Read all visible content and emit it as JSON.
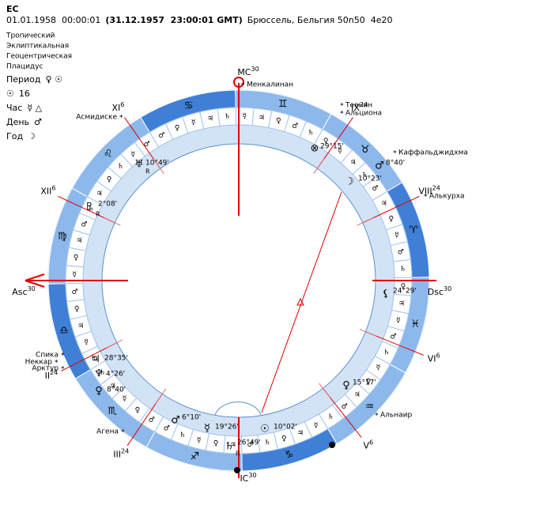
{
  "header": {
    "title": "ЕС",
    "date": "01.01.1958  00:00:01",
    "gmt": "(31.12.1957  23:00:01 GMT)",
    "place": "Брюссель, Бельгия 50n50  4e20"
  },
  "settings": [
    "Тропический",
    "Эклиптикальная",
    "Геоцентрическая",
    "Плацидус"
  ],
  "rulers": [
    {
      "label": "Период",
      "value": "♀ ☉"
    },
    {
      "label": "☉",
      "value": 16
    },
    {
      "label": "Час",
      "value": "☿ △"
    },
    {
      "label": "День",
      "value": "♂"
    },
    {
      "label": "Год",
      "value": "☽"
    }
  ],
  "chart": {
    "angles": [
      {
        "label": "MC",
        "degree": 30
      },
      {
        "label": "Dsc",
        "degree": 30
      },
      {
        "label": "IC",
        "degree": 30
      },
      {
        "label": "Asc",
        "degree": 30
      }
    ],
    "houses": [
      {
        "label": "XII",
        "degree": 6
      },
      {
        "label": "XI",
        "degree": 6
      },
      {
        "label": "IX",
        "degree": 24
      },
      {
        "label": "VIII",
        "degree": 24
      },
      {
        "label": "VI",
        "degree": 6
      },
      {
        "label": "V",
        "degree": 6
      },
      {
        "label": "III",
        "degree": 24
      },
      {
        "label": "II",
        "degree": 24
      }
    ],
    "signs": [
      "♋",
      "♊",
      "♉",
      "♈",
      "♓",
      "♒",
      "♑",
      "♐",
      "♏",
      "♎",
      "♍",
      "♌"
    ],
    "terms": [
      "♂",
      "♀",
      "☿",
      "♃",
      "♄",
      "☿",
      "♃",
      "♀",
      "♂",
      "♄",
      "♀",
      "☿",
      "♃",
      "♄",
      "♂",
      "♃",
      "♀",
      "☿",
      "♂",
      "♄",
      "♀",
      "♃",
      "☿",
      "♂",
      "♄",
      "☿",
      "♀",
      "♃",
      "♂",
      "♄",
      "☿",
      "♃",
      "♀",
      "♄",
      "♂",
      "♃",
      "♀",
      "☿",
      "♄",
      "♂",
      "♂",
      "♀",
      "☿",
      "♃",
      "♄",
      "♄",
      "☿",
      "♃",
      "♀",
      "♂",
      "☿",
      "♀",
      "♃",
      "♂",
      "♄",
      "♃",
      "♀",
      "♄",
      "☿",
      "♂"
    ],
    "retro_mark": "R",
    "star_marker": "*",
    "planets": [
      {
        "glyph": "♅",
        "position": "10°49'",
        "retro": true
      },
      {
        "glyph": "♇",
        "position": "2°08'",
        "retro": true
      },
      {
        "glyph": "♃",
        "position": "28°35'"
      },
      {
        "glyph": "♆",
        "position": "4°26'"
      },
      {
        "glyph": "♀",
        "position": "8°40'"
      },
      {
        "glyph": "♂",
        "position": "6°10'"
      },
      {
        "glyph": "☿",
        "position": "19°26'"
      },
      {
        "glyph": "♄",
        "position": "26°49'",
        "retro": true
      },
      {
        "glyph": "☉",
        "position": "10°02'",
        "color": "#e00000"
      },
      {
        "glyph": "♀",
        "position": "15°17'"
      },
      {
        "glyph": "⚸",
        "position": "24°29'"
      },
      {
        "glyph": "☽",
        "position": "10°23'",
        "color": "#e00000"
      },
      {
        "glyph": "♂",
        "position": "8°40'"
      },
      {
        "glyph": "⊗",
        "position": "29°15'"
      }
    ],
    "stars": [
      "Менкалинан",
      "Теенин",
      "Альциона",
      "Каффальджидхма",
      "Алькурха",
      "Альнаир",
      "Агена",
      "Спика",
      "Неккар",
      "Арктур",
      "Асмидиске"
    ]
  }
}
